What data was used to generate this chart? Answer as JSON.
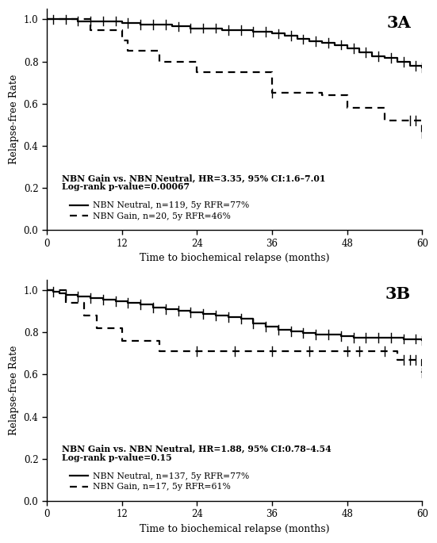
{
  "panel_A": {
    "label": "3A",
    "annot_line1": "NBN Gain vs. NBN Neutral, HR=3.35, 95% CI:1.6–7.01",
    "annot_line2": "Log-rank p-value=0.00067",
    "legend_solid": "NBN Neutral, n=119, 5y RFR=77%",
    "legend_dashed": "NBN Gain, n=20, 5y RFR=46%",
    "neutral_times": [
      0,
      2,
      5,
      7,
      9,
      12,
      15,
      17,
      20,
      23,
      25,
      28,
      30,
      33,
      36,
      38,
      40,
      42,
      44,
      46,
      48,
      50,
      52,
      54,
      56,
      58,
      60
    ],
    "neutral_surv": [
      1.0,
      1.0,
      0.992,
      0.992,
      0.992,
      0.983,
      0.975,
      0.975,
      0.966,
      0.958,
      0.958,
      0.949,
      0.949,
      0.94,
      0.932,
      0.923,
      0.906,
      0.897,
      0.888,
      0.879,
      0.861,
      0.843,
      0.825,
      0.816,
      0.798,
      0.78,
      0.771
    ],
    "neutral_censor_times": [
      1,
      3,
      5,
      7,
      9,
      11,
      13,
      15,
      17,
      19,
      21,
      23,
      25,
      27,
      29,
      31,
      33,
      35,
      37,
      39,
      41,
      43,
      45,
      47,
      49,
      51,
      53,
      55,
      57,
      59,
      60
    ],
    "gain_times": [
      0,
      7,
      12,
      13,
      18,
      24,
      36,
      44,
      48,
      54,
      60
    ],
    "gain_surv": [
      1.0,
      0.95,
      0.9,
      0.85,
      0.8,
      0.75,
      0.65,
      0.64,
      0.58,
      0.52,
      0.46
    ],
    "gain_censor_times": [
      36,
      58,
      59,
      60
    ],
    "xlabel": "Time to biochemical relapse (months)",
    "ylabel": "Relapse-free Rate",
    "xlim": [
      0,
      60
    ],
    "ylim": [
      0.0,
      1.05
    ],
    "yticks": [
      0.0,
      0.2,
      0.4,
      0.6,
      0.8,
      1.0
    ],
    "xticks": [
      0,
      12,
      24,
      36,
      48,
      60
    ]
  },
  "panel_B": {
    "label": "3B",
    "annot_line1": "NBN Gain vs. NBN Neutral, HR=1.88, 95% CI:0.78–4.54",
    "annot_line2": "Log-rank p-value=0.15",
    "legend_solid": "NBN Neutral, n=137, 5y RFR=77%",
    "legend_dashed": "NBN Gain, n=17, 5y RFR=61%",
    "neutral_times": [
      0,
      1,
      2,
      3,
      5,
      7,
      9,
      11,
      13,
      15,
      17,
      19,
      21,
      23,
      25,
      27,
      29,
      31,
      33,
      35,
      37,
      39,
      41,
      43,
      45,
      47,
      49,
      51,
      53,
      55,
      57,
      59,
      60
    ],
    "neutral_surv": [
      1.0,
      0.993,
      0.985,
      0.978,
      0.97,
      0.963,
      0.955,
      0.948,
      0.94,
      0.933,
      0.918,
      0.91,
      0.903,
      0.895,
      0.888,
      0.88,
      0.873,
      0.865,
      0.843,
      0.828,
      0.813,
      0.805,
      0.798,
      0.79,
      0.79,
      0.783,
      0.776,
      0.776,
      0.776,
      0.776,
      0.769,
      0.769,
      0.762
    ],
    "neutral_censor_times": [
      1,
      3,
      5,
      7,
      9,
      11,
      13,
      15,
      17,
      19,
      21,
      23,
      25,
      27,
      29,
      31,
      33,
      35,
      37,
      39,
      41,
      43,
      45,
      47,
      49,
      51,
      53,
      55,
      57,
      59,
      60
    ],
    "gain_times": [
      0,
      3,
      6,
      8,
      12,
      18,
      56,
      60
    ],
    "gain_surv": [
      1.0,
      0.94,
      0.88,
      0.82,
      0.76,
      0.71,
      0.67,
      0.61
    ],
    "gain_censor_times": [
      24,
      30,
      36,
      42,
      48,
      50,
      54,
      57,
      58,
      59,
      60
    ],
    "xlabel": "Time to biochemical relapse (months)",
    "ylabel": "Relapse-free Rate",
    "xlim": [
      0,
      60
    ],
    "ylim": [
      0.0,
      1.05
    ],
    "yticks": [
      0.0,
      0.2,
      0.4,
      0.6,
      0.8,
      1.0
    ],
    "xticks": [
      0,
      12,
      24,
      36,
      48,
      60
    ]
  }
}
